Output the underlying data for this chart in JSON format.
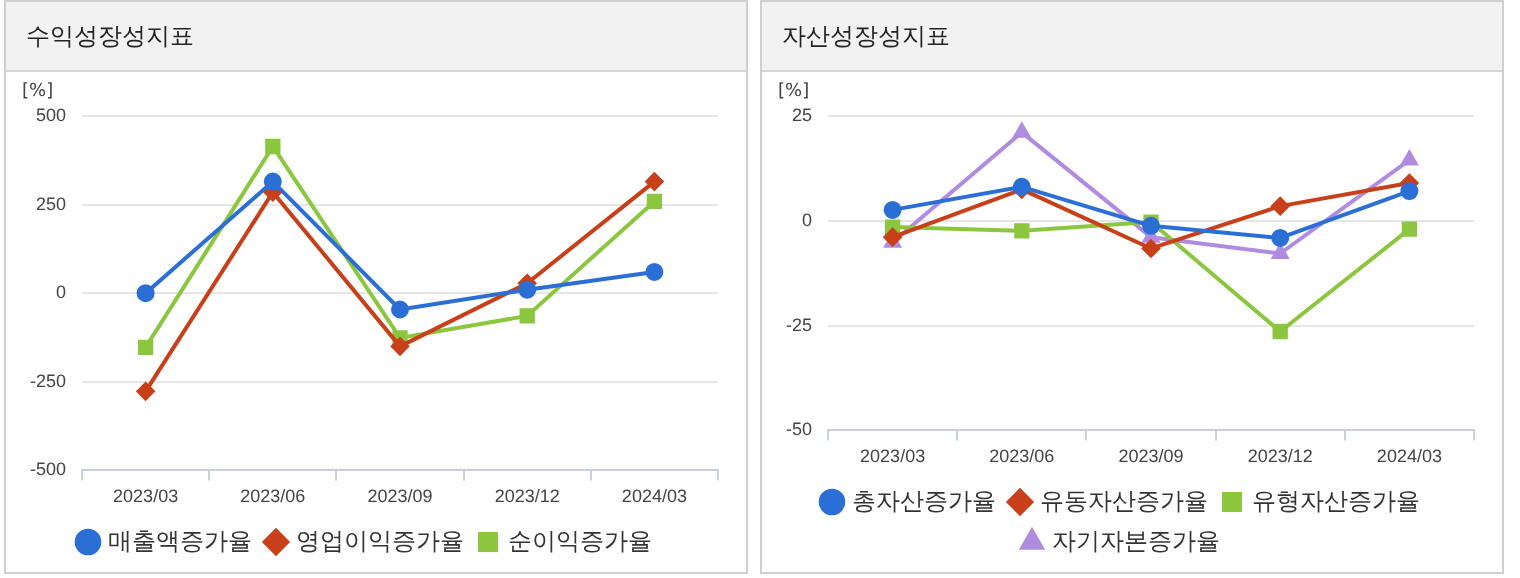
{
  "chart_data": [
    {
      "type": "line",
      "title": "수익성장성지표",
      "ylabel": "[%]",
      "categories": [
        "2023/03",
        "2023/06",
        "2023/09",
        "2023/12",
        "2024/03"
      ],
      "ylim": [
        -500,
        500
      ],
      "yticks": [
        -500,
        -250,
        0,
        250,
        500
      ],
      "grid": "y",
      "legend": "bottom",
      "series": [
        {
          "name": "매출액증가율",
          "color": "#2b6fd6",
          "marker": "circle",
          "values": [
            0,
            315,
            -46,
            10,
            60
          ]
        },
        {
          "name": "영업이익증가율",
          "color": "#c8401a",
          "marker": "diamond",
          "values": [
            -277,
            285,
            -150,
            28,
            315
          ]
        },
        {
          "name": "순이익증가율",
          "color": "#8cc63f",
          "marker": "square",
          "values": [
            -153,
            414,
            -126,
            -64,
            259
          ]
        }
      ]
    },
    {
      "type": "line",
      "title": "자산성장성지표",
      "ylabel": "[%]",
      "categories": [
        "2023/03",
        "2023/06",
        "2023/09",
        "2023/12",
        "2024/03"
      ],
      "ylim": [
        -50,
        25
      ],
      "yticks": [
        -50,
        -25,
        0,
        25
      ],
      "grid": "y",
      "legend": "bottom",
      "series": [
        {
          "name": "총자산증가율",
          "color": "#2b6fd6",
          "marker": "circle",
          "values": [
            2.6,
            8.1,
            -1.2,
            -4.1,
            7.1
          ]
        },
        {
          "name": "유동자산증가율",
          "color": "#c8401a",
          "marker": "diamond",
          "values": [
            -3.9,
            7.5,
            -6.6,
            3.5,
            9
          ]
        },
        {
          "name": "유형자산증가율",
          "color": "#8cc63f",
          "marker": "square",
          "values": [
            -1.5,
            -2.4,
            -0.3,
            -26.4,
            -2
          ]
        },
        {
          "name": "자기자본증가율",
          "color": "#b08ce0",
          "marker": "triangle",
          "values": [
            -5.1,
            21.1,
            -3.9,
            -7.8,
            14.5
          ]
        }
      ]
    }
  ]
}
